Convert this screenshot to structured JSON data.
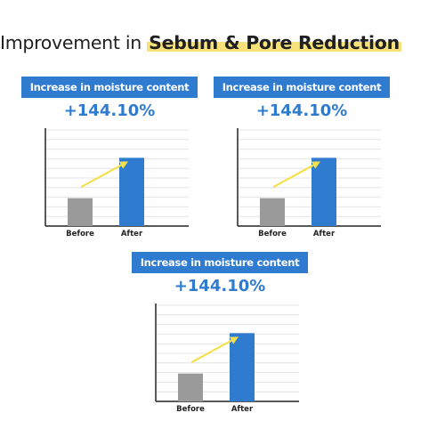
{
  "title": {
    "prefix": "Improvement in ",
    "highlight": "Sebum & Pore Reduction"
  },
  "colors": {
    "accent": "#2f7bd0",
    "before_bar": "#9a9a9a",
    "arrow": "#f4e04d",
    "highlight": "#f7e27a"
  },
  "chart_data": [
    {
      "type": "bar",
      "title": "Increase in moisture content",
      "annotation": "+144.10%",
      "categories": [
        "Before",
        "After"
      ],
      "values": [
        29,
        71
      ],
      "ylim": [
        0,
        100
      ],
      "grid": true
    },
    {
      "type": "bar",
      "title": "Increase in moisture content",
      "annotation": "+144.10%",
      "categories": [
        "Before",
        "After"
      ],
      "values": [
        29,
        71
      ],
      "ylim": [
        0,
        100
      ],
      "grid": true
    },
    {
      "type": "bar",
      "title": "Increase in moisture content",
      "annotation": "+144.10%",
      "categories": [
        "Before",
        "After"
      ],
      "values": [
        29,
        71
      ],
      "ylim": [
        0,
        100
      ],
      "grid": true
    }
  ]
}
